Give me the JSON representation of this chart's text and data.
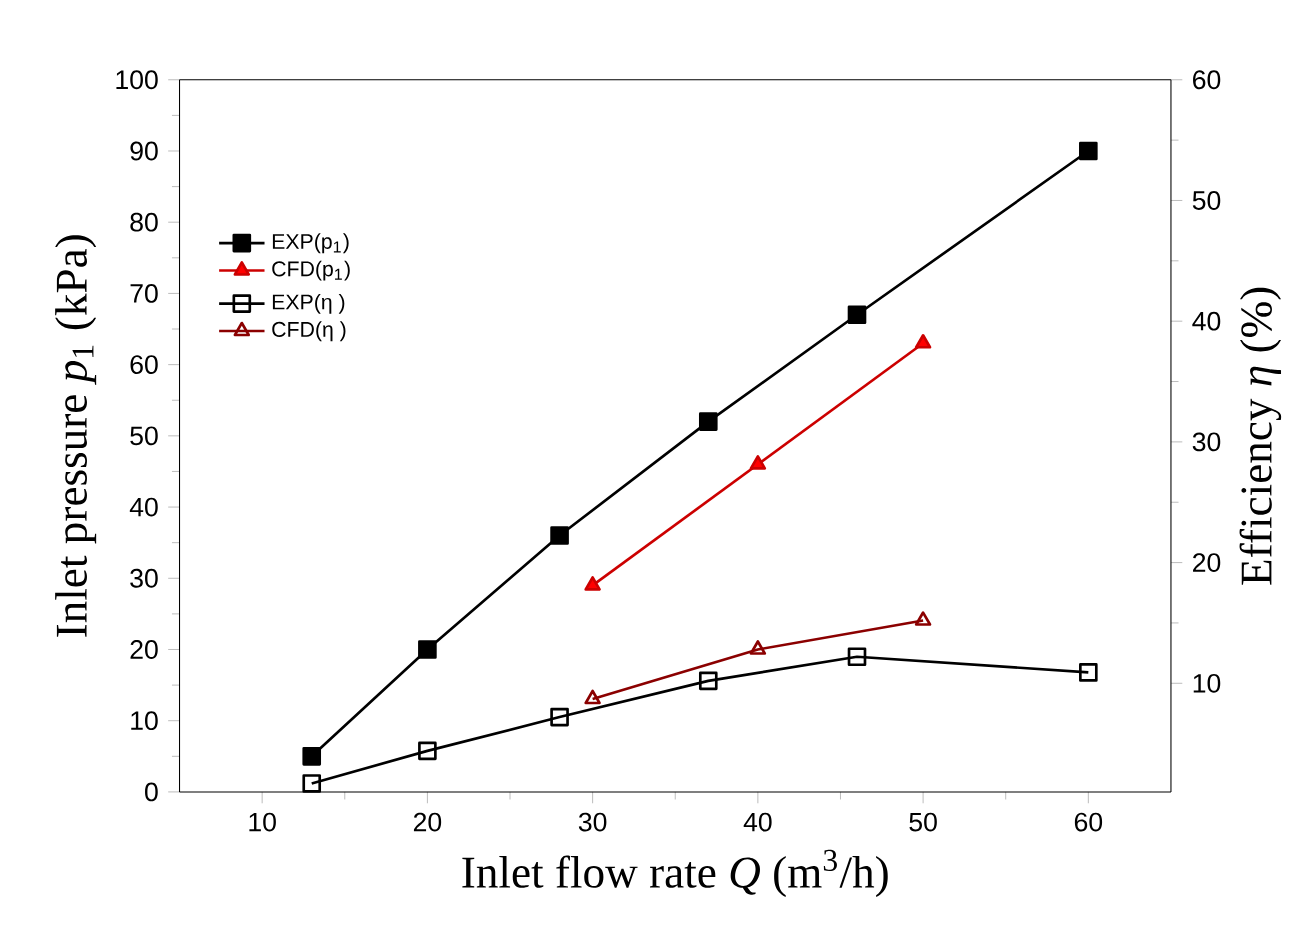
{
  "chart_data": {
    "type": "line",
    "xlabel": "Inlet flow rate *Q* (m$^{3}$/h)",
    "ylabel": "Inlet pressure *p*$_{1}$ (kPa)",
    "y2label": "Efficiency *η* (%)",
    "xlim": [
      5,
      65
    ],
    "xticks": [
      10,
      20,
      30,
      40,
      50,
      60
    ],
    "ylim": [
      0,
      100
    ],
    "yticks": [
      0,
      10,
      20,
      30,
      40,
      50,
      60,
      70,
      80,
      90,
      100
    ],
    "y2lim": [
      1,
      60
    ],
    "y2ticks": [
      10,
      20,
      30,
      40,
      50,
      60
    ],
    "legend": "top left",
    "grid": false,
    "series": [
      {
        "name": "EXP(p$_{1}$)",
        "color": "#000000",
        "marker": "square",
        "x": [
          13,
          20,
          28,
          37,
          46,
          60
        ],
        "values": [
          5,
          20,
          36,
          52,
          67,
          90
        ]
      },
      {
        "name": "CFD(p$_{1}$)",
        "color": "#cc0000",
        "marker": "triangle",
        "x": [
          30,
          40,
          50
        ],
        "values": [
          29,
          46,
          63
        ]
      },
      {
        "name": "EXP(η )",
        "color": "#000000",
        "marker": "square",
        "axis": "y2",
        "x": [
          13,
          20,
          28,
          37,
          46,
          60
        ],
        "values": [
          1.7,
          4.4,
          7.2,
          10.2,
          12.2,
          10.9
        ]
      },
      {
        "name": "CFD(η )",
        "color": "#8b0000",
        "marker": "triangle",
        "axis": "y2",
        "x": [
          30,
          40,
          50
        ],
        "values": [
          8.7,
          12.8,
          15.2
        ]
      }
    ]
  }
}
